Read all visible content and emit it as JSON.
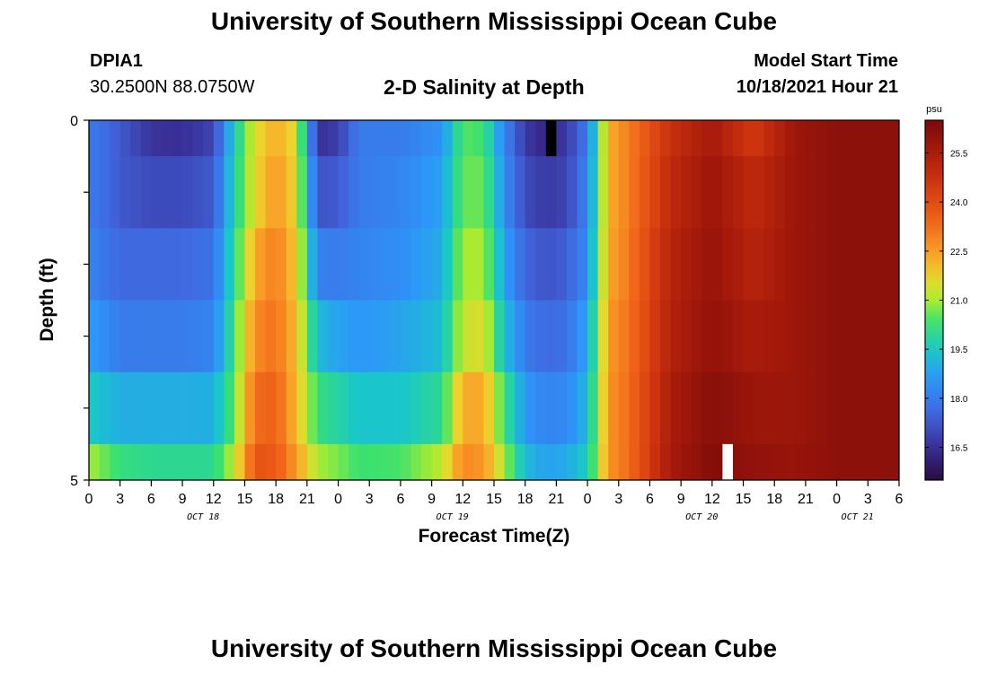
{
  "page": {
    "title": "University of Southern Mississippi Ocean Cube",
    "station_id": "DPIA1",
    "station_coords": "30.2500N  88.0750W",
    "chart_subtitle": "2-D Salinity at Depth",
    "model_start_label": "Model Start Time",
    "model_start_value": "10/18/2021 Hour 21",
    "footer_title": "University of Southern Mississippi Ocean Cube"
  },
  "chart_data": {
    "type": "heatmap",
    "title": "2-D Salinity at Depth",
    "xlabel": "Forecast Time(Z)",
    "ylabel": "Depth (ft)",
    "x_tick_labels": [
      "0",
      "3",
      "6",
      "9",
      "12",
      "15",
      "18",
      "21",
      "0",
      "3",
      "6",
      "9",
      "12",
      "15",
      "18",
      "21",
      "0",
      "3",
      "6",
      "9",
      "12",
      "15",
      "18",
      "21",
      "0",
      "3",
      "6"
    ],
    "date_labels": [
      {
        "text": "OCT 18",
        "hour_index": 11
      },
      {
        "text": "OCT 19",
        "hour_index": 35
      },
      {
        "text": "OCT 20",
        "hour_index": 59
      },
      {
        "text": "OCT 21",
        "hour_index": 74
      }
    ],
    "x_range_hours": [
      0,
      78
    ],
    "y_range_ft": [
      0,
      5
    ],
    "y_tick_labels": [
      "0",
      "5"
    ],
    "depth_rows": 5,
    "colorbar": {
      "unit": "psu",
      "range": [
        15.5,
        26.5
      ],
      "tick_labels": [
        "16.5",
        "18.0",
        "19.5",
        "21.0",
        "22.5",
        "24.0",
        "25.5"
      ],
      "tick_values": [
        16.5,
        18.0,
        19.5,
        21.0,
        22.5,
        24.0,
        25.5
      ]
    },
    "missing_cells": [
      {
        "hour": 44,
        "depth_ft": 0.25,
        "color": "#000000"
      },
      {
        "hour": 61,
        "depth_ft": 4.75,
        "color": "#ffffff"
      }
    ],
    "salinity_profiles": [
      {
        "depth_ft": 0.25,
        "hours": [
          0,
          3,
          6,
          9,
          12,
          14,
          16,
          18,
          20,
          22,
          24,
          26,
          30,
          34,
          36,
          38,
          40,
          42,
          44,
          46,
          48,
          50,
          52,
          56,
          60,
          64,
          68,
          72,
          76,
          78
        ],
        "values": [
          18.0,
          17.3,
          16.6,
          16.5,
          16.9,
          19.6,
          21.5,
          22.3,
          21.5,
          16.5,
          16.8,
          18.0,
          18.0,
          18.5,
          20.5,
          20.3,
          18.2,
          16.7,
          16.3,
          16.7,
          18.0,
          22.2,
          23.0,
          24.8,
          25.6,
          24.5,
          25.8,
          26.1,
          26.1,
          26.1
        ]
      },
      {
        "depth_ft": 1.0,
        "hours": [
          0,
          3,
          6,
          9,
          12,
          14,
          16,
          18,
          20,
          22,
          24,
          26,
          30,
          34,
          36,
          38,
          40,
          42,
          44,
          46,
          48,
          50,
          52,
          56,
          60,
          64,
          68,
          72,
          76,
          78
        ],
        "values": [
          18.0,
          17.3,
          17.0,
          17.0,
          17.3,
          19.8,
          21.6,
          22.6,
          21.6,
          17.2,
          17.3,
          18.0,
          18.2,
          18.8,
          20.6,
          20.6,
          18.4,
          17.0,
          16.7,
          16.9,
          18.2,
          22.2,
          23.0,
          25.0,
          25.8,
          25.0,
          25.8,
          26.1,
          26.1,
          26.1
        ]
      },
      {
        "depth_ft": 2.0,
        "hours": [
          0,
          3,
          6,
          9,
          12,
          14,
          16,
          18,
          20,
          22,
          24,
          26,
          30,
          34,
          36,
          38,
          40,
          42,
          44,
          46,
          48,
          50,
          52,
          56,
          60,
          64,
          68,
          72,
          76,
          78
        ],
        "values": [
          18.2,
          17.6,
          17.6,
          17.6,
          17.8,
          20.0,
          22.3,
          23.0,
          21.8,
          18.1,
          18.0,
          18.2,
          18.4,
          19.0,
          21.0,
          21.0,
          18.8,
          17.5,
          17.2,
          17.4,
          18.4,
          22.3,
          23.1,
          25.2,
          25.9,
          25.2,
          25.8,
          26.1,
          26.1,
          26.1
        ]
      },
      {
        "depth_ft": 3.0,
        "hours": [
          0,
          3,
          6,
          9,
          12,
          14,
          16,
          18,
          20,
          22,
          24,
          26,
          30,
          34,
          36,
          38,
          40,
          42,
          44,
          46,
          48,
          50,
          52,
          56,
          60,
          64,
          68,
          72,
          76,
          78
        ],
        "values": [
          18.7,
          18.0,
          18.0,
          18.0,
          18.2,
          20.3,
          22.8,
          23.2,
          22.0,
          19.2,
          18.8,
          18.6,
          18.8,
          19.3,
          21.3,
          21.5,
          19.3,
          18.0,
          17.6,
          17.8,
          18.8,
          22.5,
          23.2,
          25.3,
          26.0,
          25.5,
          25.8,
          26.1,
          26.1,
          26.1
        ]
      },
      {
        "depth_ft": 4.0,
        "hours": [
          0,
          3,
          6,
          9,
          12,
          14,
          16,
          18,
          20,
          22,
          24,
          26,
          30,
          34,
          36,
          38,
          40,
          42,
          44,
          46,
          48,
          50,
          52,
          56,
          60,
          64,
          68,
          72,
          76,
          78
        ],
        "values": [
          19.5,
          19.0,
          19.0,
          19.0,
          19.0,
          20.6,
          23.3,
          23.5,
          22.0,
          20.2,
          19.8,
          19.4,
          19.4,
          20.0,
          22.3,
          22.3,
          20.2,
          18.6,
          18.2,
          18.3,
          19.2,
          22.6,
          23.3,
          25.5,
          26.2,
          25.8,
          25.8,
          26.1,
          26.1,
          26.1
        ]
      },
      {
        "depth_ft": 4.75,
        "hours": [
          0,
          3,
          6,
          9,
          12,
          14,
          16,
          18,
          20,
          22,
          24,
          26,
          30,
          34,
          36,
          38,
          40,
          42,
          44,
          46,
          48,
          50,
          52,
          56,
          60,
          64,
          68,
          72,
          76,
          78
        ],
        "values": [
          21.0,
          20.2,
          20.0,
          20.0,
          20.0,
          21.2,
          23.8,
          23.7,
          22.5,
          21.0,
          20.7,
          20.3,
          20.4,
          21.2,
          22.8,
          22.6,
          21.0,
          19.2,
          18.8,
          18.9,
          19.6,
          22.6,
          23.3,
          25.6,
          26.3,
          26.0,
          25.9,
          26.1,
          26.1,
          26.1
        ]
      }
    ]
  }
}
